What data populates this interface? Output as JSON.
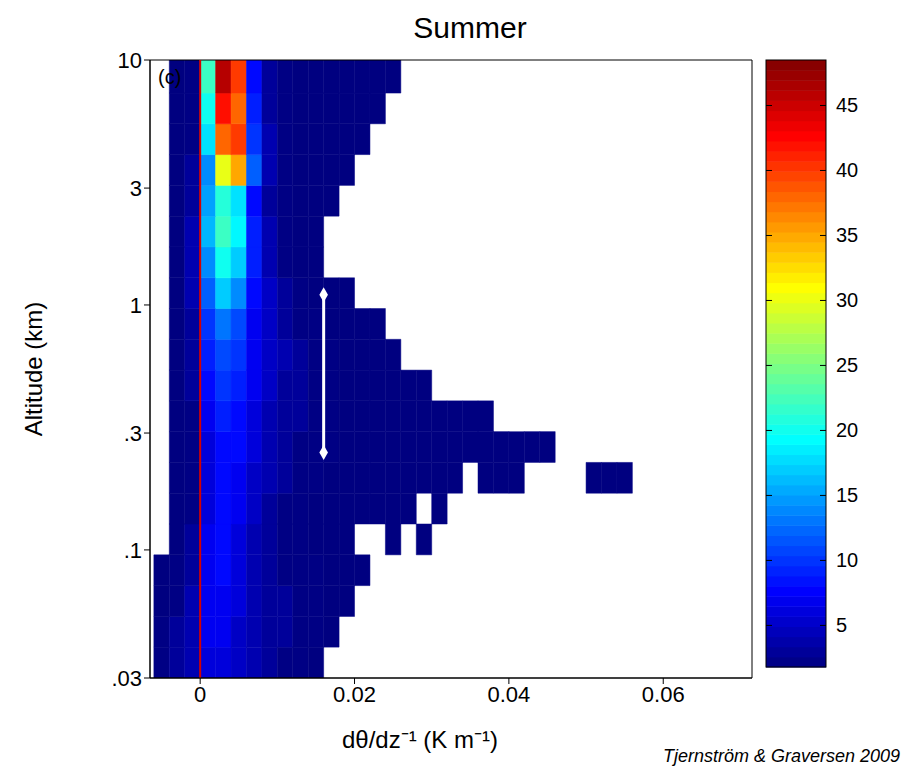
{
  "chart_data": {
    "type": "heatmap",
    "title": "Summer",
    "panel": "(c)",
    "x_label": "dθ/dz⁻¹ (K m⁻¹)",
    "y_label": "Altitude (km)",
    "source": "Tjernström & Graversen 2009",
    "log": "y",
    "xlim": [
      -0.0065,
      0.0715
    ],
    "ylim": [
      0.03,
      10
    ],
    "xticks": [
      0,
      0.02,
      0.04,
      0.06
    ],
    "yticks": [
      {
        "value": 0.03,
        "label": ".03"
      },
      {
        "value": 0.1,
        "label": ".1"
      },
      {
        "value": 0.3,
        "label": ".3"
      },
      1,
      3,
      10
    ],
    "x_edges": [
      -0.006,
      -0.004,
      -0.002,
      0,
      0.002,
      0.004,
      0.006,
      0.008,
      0.01,
      0.012,
      0.014,
      0.016,
      0.018,
      0.02,
      0.022,
      0.024,
      0.026,
      0.028,
      0.03,
      0.032,
      0.034,
      0.036,
      0.038,
      0.04,
      0.042,
      0.044,
      0.046,
      0.048,
      0.05,
      0.052,
      0.054,
      0.056,
      0.058,
      0.06
    ],
    "y_edges": [
      0.03,
      0.0401,
      0.0535,
      0.0715,
      0.0955,
      0.1276,
      0.1704,
      0.2276,
      0.304,
      0.406,
      0.542,
      0.724,
      0.967,
      1.291,
      1.725,
      2.304,
      3.077,
      4.11,
      5.49,
      7.33,
      10
    ],
    "counts": [
      [
        2,
        3,
        4,
        6,
        6,
        5,
        4,
        3,
        2,
        2,
        1,
        0,
        0,
        0,
        0,
        0,
        0,
        0,
        0,
        0,
        0,
        0,
        0,
        0,
        0,
        0,
        0,
        0,
        0,
        0,
        0,
        0,
        0
      ],
      [
        2,
        3,
        4,
        7,
        7,
        5,
        4,
        3,
        3,
        2,
        2,
        1,
        0,
        0,
        0,
        0,
        0,
        0,
        0,
        0,
        0,
        0,
        0,
        0,
        0,
        0,
        0,
        0,
        0,
        0,
        0,
        0,
        0
      ],
      [
        1,
        2,
        4,
        7,
        7,
        6,
        4,
        3,
        3,
        2,
        2,
        1,
        1,
        0,
        0,
        0,
        0,
        0,
        0,
        0,
        0,
        0,
        0,
        0,
        0,
        0,
        0,
        0,
        0,
        0,
        0,
        0,
        0
      ],
      [
        1,
        2,
        3,
        7,
        8,
        6,
        4,
        3,
        2,
        2,
        2,
        1,
        1,
        1,
        0,
        0,
        0,
        0,
        0,
        0,
        0,
        0,
        0,
        0,
        0,
        0,
        0,
        0,
        0,
        0,
        0,
        0,
        0
      ],
      [
        0,
        1,
        3,
        7,
        8,
        6,
        4,
        3,
        2,
        2,
        1,
        1,
        1,
        0,
        0,
        1,
        0,
        1,
        0,
        0,
        0,
        0,
        0,
        0,
        0,
        0,
        0,
        0,
        0,
        0,
        0,
        0,
        0
      ],
      [
        0,
        1,
        2,
        6,
        8,
        7,
        5,
        3,
        2,
        2,
        1,
        1,
        1,
        1,
        1,
        1,
        1,
        0,
        1,
        0,
        0,
        0,
        0,
        0,
        0,
        0,
        0,
        0,
        0,
        0,
        0,
        0,
        0
      ],
      [
        0,
        1,
        2,
        6,
        8,
        7,
        5,
        4,
        3,
        2,
        2,
        1,
        1,
        1,
        1,
        1,
        1,
        1,
        1,
        1,
        0,
        1,
        1,
        1,
        0,
        0,
        0,
        0,
        1,
        1,
        1,
        0,
        0
      ],
      [
        0,
        1,
        2,
        6,
        8,
        8,
        6,
        4,
        3,
        2,
        2,
        2,
        1,
        1,
        1,
        1,
        1,
        1,
        1,
        1,
        1,
        1,
        1,
        1,
        1,
        1,
        0,
        0,
        0,
        0,
        0,
        0,
        0
      ],
      [
        0,
        1,
        2,
        7,
        9,
        8,
        6,
        4,
        3,
        3,
        2,
        2,
        1,
        1,
        1,
        1,
        1,
        1,
        1,
        1,
        1,
        1,
        0,
        0,
        0,
        0,
        0,
        0,
        0,
        0,
        0,
        0,
        0
      ],
      [
        0,
        1,
        3,
        8,
        10,
        9,
        7,
        5,
        3,
        3,
        2,
        2,
        1,
        1,
        1,
        1,
        1,
        1,
        0,
        0,
        0,
        0,
        0,
        0,
        0,
        0,
        0,
        0,
        0,
        0,
        0,
        0,
        0
      ],
      [
        0,
        1,
        3,
        9,
        11,
        10,
        7,
        5,
        4,
        3,
        2,
        2,
        1,
        1,
        1,
        1,
        0,
        0,
        0,
        0,
        0,
        0,
        0,
        0,
        0,
        0,
        0,
        0,
        0,
        0,
        0,
        0,
        0
      ],
      [
        0,
        1,
        3,
        10,
        13,
        11,
        7,
        5,
        3,
        2,
        2,
        1,
        1,
        1,
        1,
        0,
        0,
        0,
        0,
        0,
        0,
        0,
        0,
        0,
        0,
        0,
        0,
        0,
        0,
        0,
        0,
        0,
        0
      ],
      [
        0,
        1,
        4,
        12,
        17,
        14,
        8,
        5,
        3,
        2,
        1,
        1,
        1,
        0,
        0,
        0,
        0,
        0,
        0,
        0,
        0,
        0,
        0,
        0,
        0,
        0,
        0,
        0,
        0,
        0,
        0,
        0,
        0
      ],
      [
        0,
        1,
        4,
        14,
        20,
        17,
        9,
        4,
        2,
        1,
        1,
        0,
        0,
        0,
        0,
        0,
        0,
        0,
        0,
        0,
        0,
        0,
        0,
        0,
        0,
        0,
        0,
        0,
        0,
        0,
        0,
        0,
        0
      ],
      [
        0,
        1,
        4,
        16,
        22,
        19,
        9,
        4,
        2,
        1,
        1,
        0,
        0,
        0,
        0,
        0,
        0,
        0,
        0,
        0,
        0,
        0,
        0,
        0,
        0,
        0,
        0,
        0,
        0,
        0,
        0,
        0,
        0
      ],
      [
        0,
        1,
        3,
        15,
        21,
        18,
        8,
        3,
        2,
        1,
        1,
        1,
        0,
        0,
        0,
        0,
        0,
        0,
        0,
        0,
        0,
        0,
        0,
        0,
        0,
        0,
        0,
        0,
        0,
        0,
        0,
        0,
        0
      ],
      [
        0,
        1,
        3,
        14,
        30,
        35,
        12,
        4,
        2,
        1,
        1,
        1,
        1,
        0,
        0,
        0,
        0,
        0,
        0,
        0,
        0,
        0,
        0,
        0,
        0,
        0,
        0,
        0,
        0,
        0,
        0,
        0,
        0
      ],
      [
        0,
        1,
        2,
        18,
        38,
        40,
        10,
        4,
        2,
        1,
        1,
        1,
        1,
        1,
        0,
        0,
        0,
        0,
        0,
        0,
        0,
        0,
        0,
        0,
        0,
        0,
        0,
        0,
        0,
        0,
        0,
        0,
        0
      ],
      [
        0,
        1,
        2,
        20,
        42,
        38,
        9,
        3,
        2,
        1,
        1,
        1,
        1,
        1,
        1,
        0,
        0,
        0,
        0,
        0,
        0,
        0,
        0,
        0,
        0,
        0,
        0,
        0,
        0,
        0,
        0,
        0,
        0
      ],
      [
        0,
        1,
        2,
        22,
        46,
        40,
        8,
        3,
        2,
        1,
        1,
        1,
        1,
        1,
        1,
        1,
        0,
        0,
        0,
        0,
        0,
        0,
        0,
        0,
        0,
        0,
        0,
        0,
        0,
        0,
        0,
        0,
        0
      ]
    ],
    "colorbar": {
      "range": [
        1.8,
        48.5
      ],
      "ticks": [
        5,
        10,
        15,
        20,
        25,
        30,
        35,
        40,
        45
      ]
    },
    "reference_line": {
      "x": 0,
      "color": "#d40000"
    },
    "error_bar": {
      "x": 0.016,
      "y": [
        0.25,
        1.1
      ],
      "color": "#ffffff"
    }
  }
}
